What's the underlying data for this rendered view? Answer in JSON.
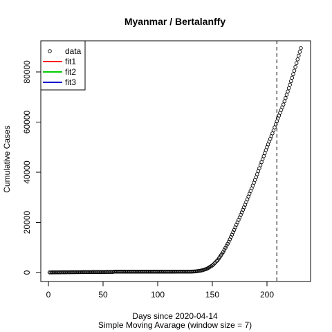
{
  "chart_data": {
    "type": "scatter",
    "title": "Myanmar / Bertalanffy",
    "xlabel": "Days since 2020-04-14",
    "xlabel2": "Simple Moving Avarage (window size = 7)",
    "ylabel": "Cumulative Cases",
    "xlim": [
      1,
      231
    ],
    "ylim": [
      0,
      89500
    ],
    "x_ticks": [
      0,
      50,
      100,
      150,
      200
    ],
    "y_ticks": [
      0,
      20000,
      40000,
      60000,
      80000
    ],
    "vline_x": 209,
    "legend_position": "top-left",
    "legend": [
      {
        "label": "data",
        "kind": "point",
        "color": "#000000"
      },
      {
        "label": "fit1",
        "kind": "line",
        "color": "#ff0000"
      },
      {
        "label": "fit2",
        "kind": "line",
        "color": "#00cd00"
      },
      {
        "label": "fit3",
        "kind": "line",
        "color": "#0000cd"
      }
    ],
    "series": [
      {
        "name": "data",
        "anchors": [
          [
            1,
            40
          ],
          [
            20,
            120
          ],
          [
            40,
            190
          ],
          [
            59,
            240
          ],
          [
            60,
            330
          ],
          [
            100,
            330
          ],
          [
            130,
            360
          ],
          [
            135,
            450
          ],
          [
            140,
            800
          ],
          [
            145,
            1500
          ],
          [
            150,
            2800
          ],
          [
            155,
            5000
          ],
          [
            160,
            8200
          ],
          [
            165,
            12300
          ],
          [
            170,
            17000
          ],
          [
            175,
            22000
          ],
          [
            180,
            27000
          ],
          [
            185,
            32500
          ],
          [
            190,
            38000
          ],
          [
            195,
            44000
          ],
          [
            200,
            50000
          ],
          [
            205,
            55500
          ],
          [
            210,
            61500
          ],
          [
            215,
            67000
          ],
          [
            220,
            73500
          ],
          [
            225,
            80500
          ],
          [
            231,
            89500
          ]
        ]
      }
    ]
  }
}
